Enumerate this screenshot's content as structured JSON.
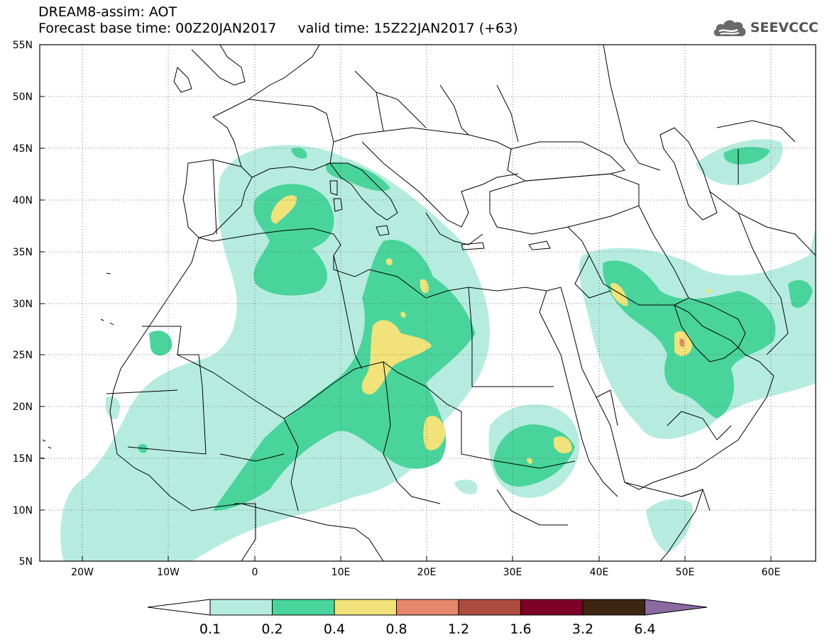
{
  "header": {
    "title_line1": "DREAM8-assim: AOT",
    "title_line2": "Forecast base time: 00Z20JAN2017     valid time: 15Z22JAN2017 (+63)"
  },
  "logo": {
    "text": "SEEVCCC",
    "icon": "cloud-logo-icon"
  },
  "map": {
    "lon_ticks": [
      "20W",
      "10W",
      "0",
      "10E",
      "20E",
      "30E",
      "40E",
      "50E",
      "60E"
    ],
    "lat_ticks": [
      "55N",
      "50N",
      "45N",
      "40N",
      "35N",
      "30N",
      "25N",
      "20N",
      "15N",
      "10N",
      "5N"
    ],
    "extent": {
      "lon_min": -25,
      "lon_max": 65,
      "lat_min": 5,
      "lat_max": 55
    }
  },
  "colorbar": {
    "labels": [
      "0.1",
      "0.2",
      "0.4",
      "0.8",
      "1.2",
      "1.6",
      "3.2",
      "6.4"
    ],
    "colors": [
      "#ffffff",
      "#b6ecdf",
      "#49d49b",
      "#f1e379",
      "#e5876a",
      "#ac4c3e",
      "#7d0027",
      "#3d2611",
      "#8a6aa1"
    ]
  }
}
